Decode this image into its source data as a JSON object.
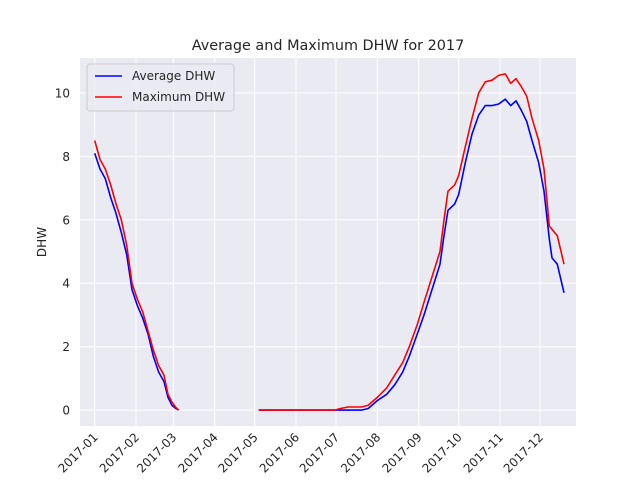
{
  "chart_data": {
    "type": "line",
    "title": "Average and Maximum DHW for 2017",
    "xlabel": "",
    "ylabel": "DHW",
    "x_ticks": [
      "2017-01",
      "2017-02",
      "2017-03",
      "2017-04",
      "2017-05",
      "2017-06",
      "2017-07",
      "2017-08",
      "2017-09",
      "2017-10",
      "2017-11",
      "2017-12"
    ],
    "xlim": [
      "2016-12-21",
      "2017-12-28"
    ],
    "y_ticks": [
      0,
      2,
      4,
      6,
      8,
      10
    ],
    "ylim": [
      -0.5,
      11.1
    ],
    "grid": true,
    "legend_position": "top-left",
    "series": [
      {
        "name": "Average DHW",
        "color": "#0000ff",
        "segments": [
          [
            [
              "2017-01-01",
              8.1
            ],
            [
              "2017-01-05",
              7.6
            ],
            [
              "2017-01-09",
              7.3
            ],
            [
              "2017-01-13",
              6.7
            ],
            [
              "2017-01-17",
              6.2
            ],
            [
              "2017-01-21",
              5.6
            ],
            [
              "2017-01-25",
              4.9
            ],
            [
              "2017-01-29",
              3.8
            ],
            [
              "2017-02-02",
              3.3
            ],
            [
              "2017-02-06",
              2.9
            ],
            [
              "2017-02-10",
              2.4
            ],
            [
              "2017-02-14",
              1.7
            ],
            [
              "2017-02-18",
              1.2
            ],
            [
              "2017-02-22",
              0.9
            ],
            [
              "2017-02-25",
              0.4
            ],
            [
              "2017-02-28",
              0.15
            ],
            [
              "2017-03-03",
              0.05
            ],
            [
              "2017-03-05",
              0.0
            ]
          ],
          [
            [
              "2017-05-04",
              0.0
            ],
            [
              "2017-06-01",
              0.0
            ],
            [
              "2017-06-30",
              0.0
            ],
            [
              "2017-07-04",
              0.0
            ],
            [
              "2017-07-20",
              0.0
            ],
            [
              "2017-07-25",
              0.05
            ],
            [
              "2017-08-01",
              0.3
            ],
            [
              "2017-08-08",
              0.5
            ],
            [
              "2017-08-14",
              0.8
            ],
            [
              "2017-08-20",
              1.2
            ],
            [
              "2017-08-25",
              1.7
            ],
            [
              "2017-08-31",
              2.4
            ],
            [
              "2017-09-05",
              3.0
            ],
            [
              "2017-09-11",
              3.8
            ],
            [
              "2017-09-17",
              4.6
            ],
            [
              "2017-09-20",
              5.5
            ],
            [
              "2017-09-23",
              6.3
            ],
            [
              "2017-09-28",
              6.5
            ],
            [
              "2017-10-01",
              6.8
            ],
            [
              "2017-10-06",
              7.8
            ],
            [
              "2017-10-11",
              8.7
            ],
            [
              "2017-10-16",
              9.3
            ],
            [
              "2017-10-21",
              9.6
            ],
            [
              "2017-10-26",
              9.6
            ],
            [
              "2017-10-31",
              9.65
            ],
            [
              "2017-11-05",
              9.8
            ],
            [
              "2017-11-09",
              9.6
            ],
            [
              "2017-11-13",
              9.75
            ],
            [
              "2017-11-17",
              9.45
            ],
            [
              "2017-11-21",
              9.1
            ],
            [
              "2017-11-25",
              8.5
            ],
            [
              "2017-11-30",
              7.8
            ],
            [
              "2017-12-04",
              6.9
            ],
            [
              "2017-12-08",
              5.4
            ],
            [
              "2017-12-10",
              4.8
            ],
            [
              "2017-12-14",
              4.6
            ],
            [
              "2017-12-19",
              3.7
            ]
          ]
        ]
      },
      {
        "name": "Maximum DHW",
        "color": "#ff0000",
        "segments": [
          [
            [
              "2017-01-01",
              8.5
            ],
            [
              "2017-01-05",
              7.9
            ],
            [
              "2017-01-09",
              7.6
            ],
            [
              "2017-01-13",
              7.1
            ],
            [
              "2017-01-17",
              6.5
            ],
            [
              "2017-01-21",
              6.0
            ],
            [
              "2017-01-25",
              5.2
            ],
            [
              "2017-01-29",
              4.0
            ],
            [
              "2017-02-02",
              3.5
            ],
            [
              "2017-02-06",
              3.1
            ],
            [
              "2017-02-10",
              2.5
            ],
            [
              "2017-02-14",
              1.9
            ],
            [
              "2017-02-18",
              1.4
            ],
            [
              "2017-02-22",
              1.1
            ],
            [
              "2017-02-25",
              0.5
            ],
            [
              "2017-02-28",
              0.25
            ],
            [
              "2017-03-03",
              0.08
            ],
            [
              "2017-03-05",
              0.0
            ]
          ],
          [
            [
              "2017-05-04",
              0.0
            ],
            [
              "2017-06-01",
              0.0
            ],
            [
              "2017-06-30",
              0.0
            ],
            [
              "2017-07-04",
              0.05
            ],
            [
              "2017-07-10",
              0.1
            ],
            [
              "2017-07-20",
              0.1
            ],
            [
              "2017-07-25",
              0.15
            ],
            [
              "2017-08-01",
              0.4
            ],
            [
              "2017-08-08",
              0.7
            ],
            [
              "2017-08-14",
              1.1
            ],
            [
              "2017-08-20",
              1.5
            ],
            [
              "2017-08-25",
              2.0
            ],
            [
              "2017-08-31",
              2.7
            ],
            [
              "2017-09-05",
              3.4
            ],
            [
              "2017-09-11",
              4.2
            ],
            [
              "2017-09-17",
              5.0
            ],
            [
              "2017-09-20",
              6.0
            ],
            [
              "2017-09-23",
              6.9
            ],
            [
              "2017-09-28",
              7.1
            ],
            [
              "2017-10-01",
              7.4
            ],
            [
              "2017-10-06",
              8.3
            ],
            [
              "2017-10-11",
              9.2
            ],
            [
              "2017-10-16",
              10.0
            ],
            [
              "2017-10-21",
              10.35
            ],
            [
              "2017-10-26",
              10.4
            ],
            [
              "2017-10-31",
              10.55
            ],
            [
              "2017-11-05",
              10.6
            ],
            [
              "2017-11-09",
              10.3
            ],
            [
              "2017-11-13",
              10.45
            ],
            [
              "2017-11-17",
              10.2
            ],
            [
              "2017-11-21",
              9.9
            ],
            [
              "2017-11-25",
              9.2
            ],
            [
              "2017-11-30",
              8.5
            ],
            [
              "2017-12-04",
              7.6
            ],
            [
              "2017-12-08",
              5.8
            ],
            [
              "2017-12-10",
              5.7
            ],
            [
              "2017-12-14",
              5.5
            ],
            [
              "2017-12-19",
              4.6
            ]
          ]
        ]
      }
    ]
  }
}
